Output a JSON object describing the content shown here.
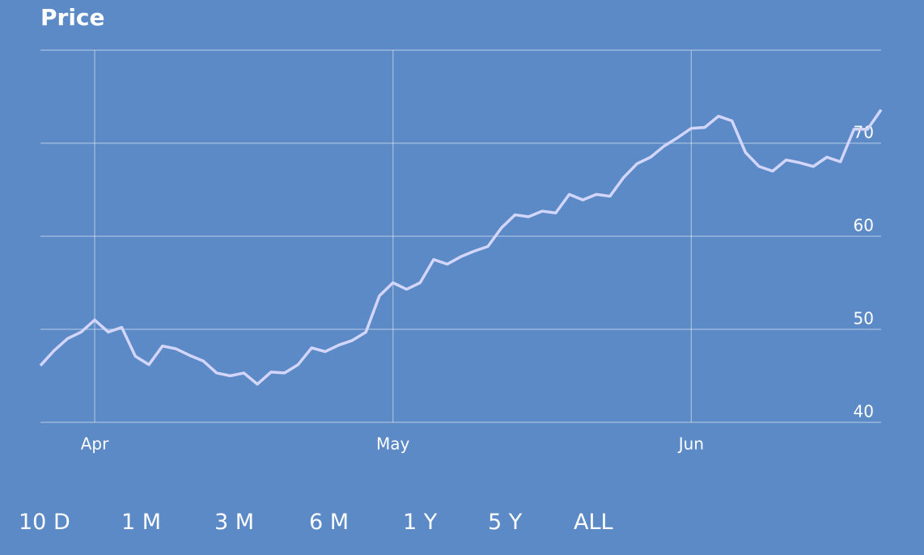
{
  "chart_data": {
    "type": "line",
    "title": "Price",
    "series": [
      {
        "name": "Price",
        "color": "#d3d6fa",
        "values": [
          46.1,
          47.7,
          49.0,
          49.7,
          51.0,
          49.7,
          50.2,
          47.1,
          46.2,
          48.2,
          47.9,
          47.2,
          46.6,
          45.3,
          45.0,
          45.3,
          44.1,
          45.4,
          45.3,
          46.2,
          48.0,
          47.6,
          48.3,
          48.8,
          49.7,
          53.6,
          55.0,
          54.3,
          55.0,
          57.5,
          57.0,
          57.8,
          58.4,
          58.9,
          60.9,
          62.3,
          62.1,
          62.7,
          62.5,
          64.5,
          63.9,
          64.5,
          64.3,
          66.3,
          67.8,
          68.5,
          69.7,
          70.6,
          71.6,
          71.7,
          72.9,
          72.4,
          69.0,
          67.5,
          67.0,
          68.2,
          67.9,
          67.5,
          68.5,
          68.0,
          71.5,
          71.5,
          73.6
        ]
      }
    ],
    "xlim": [
      0,
      62
    ],
    "xticks": [
      {
        "value": 4,
        "label": "Apr"
      },
      {
        "value": 26,
        "label": "May"
      },
      {
        "value": 48,
        "label": "Jun"
      }
    ],
    "ylim": [
      40,
      80
    ],
    "yticks": [
      40,
      50,
      60,
      70
    ],
    "grid": true
  },
  "range_buttons": [
    "10 D",
    "1 M",
    "3 M",
    "6 M",
    "1 Y",
    "5 Y",
    "ALL"
  ]
}
